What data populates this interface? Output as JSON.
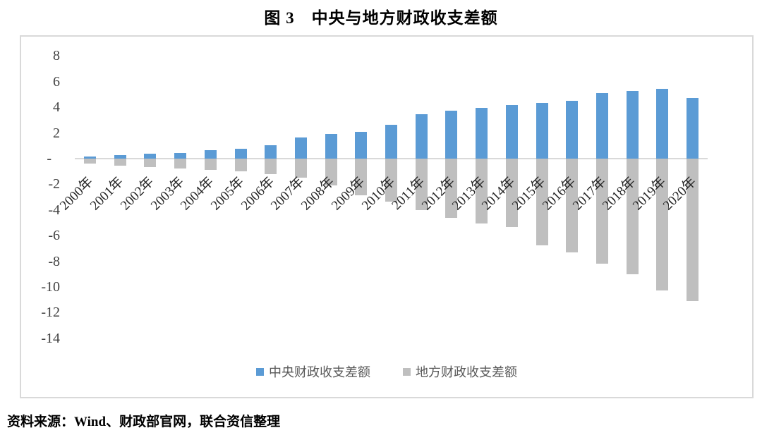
{
  "title": "图 3　中央与地方财政收支差额",
  "source_note": "资料来源：Wind、财政部官网，联合资信整理",
  "colors": {
    "central_bar": "#5B9BD5",
    "local_bar": "#BFBFBF",
    "axis_line": "#D9D9D9",
    "frame_border": "#D9D9D9",
    "y_tick_text": "#404040",
    "x_label_text": "#262626",
    "legend_text": "#595959"
  },
  "chart_data": {
    "type": "bar",
    "title": "图 3　中央与地方财政收支差额",
    "categories": [
      "2000年",
      "2001年",
      "2002年",
      "2003年",
      "2004年",
      "2005年",
      "2006年",
      "2007年",
      "2008年",
      "2009年",
      "2010年",
      "2011年",
      "2012年",
      "2013年",
      "2014年",
      "2015年",
      "2016年",
      "2017年",
      "2018年",
      "2019年",
      "2020年"
    ],
    "series": [
      {
        "name": "中央财政收支差额",
        "color": "#5B9BD5",
        "values": [
          0.15,
          0.28,
          0.36,
          0.44,
          0.66,
          0.77,
          1.05,
          1.63,
          1.93,
          2.07,
          2.65,
          3.48,
          3.74,
          3.97,
          4.19,
          4.37,
          4.5,
          5.13,
          5.27,
          5.42,
          4.72
        ]
      },
      {
        "name": "地方财政收支差额",
        "color": "#BFBFBF",
        "values": [
          -0.4,
          -0.53,
          -0.68,
          -0.74,
          -0.87,
          -1.01,
          -1.21,
          -1.48,
          -2.06,
          -2.84,
          -3.33,
          -4.02,
          -4.6,
          -5.07,
          -5.33,
          -6.73,
          -7.32,
          -8.18,
          -9.03,
          -10.26,
          -11.1
        ]
      }
    ],
    "y_axis": {
      "ticks": [
        {
          "value": 8,
          "label": "8"
        },
        {
          "value": 6,
          "label": "6"
        },
        {
          "value": 4,
          "label": "4"
        },
        {
          "value": 2,
          "label": "2"
        },
        {
          "value": 0,
          "label": "-"
        },
        {
          "value": -2,
          "label": "-2"
        },
        {
          "value": -4,
          "label": "-4"
        },
        {
          "value": -6,
          "label": "-6"
        },
        {
          "value": -8,
          "label": "-8"
        },
        {
          "value": -10,
          "label": "-10"
        },
        {
          "value": -12,
          "label": "-12"
        },
        {
          "value": -14,
          "label": "-14"
        }
      ]
    },
    "xlabel": "",
    "ylabel": "",
    "ylim": [
      -14,
      9
    ],
    "grid": false,
    "legend_position": "bottom"
  }
}
